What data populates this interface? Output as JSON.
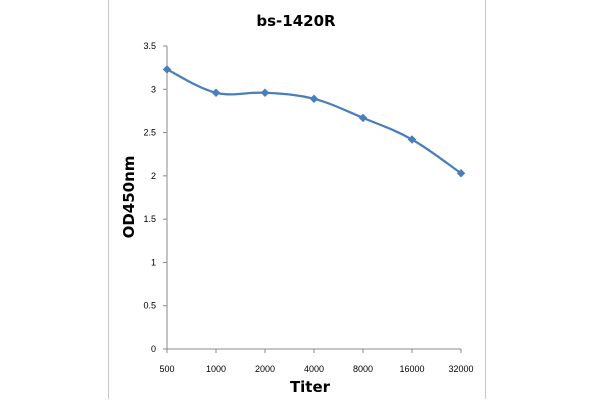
{
  "chart_data": {
    "type": "line",
    "title": "bs-1420R",
    "xlabel": "Titer",
    "ylabel": "OD450nm",
    "categories": [
      "500",
      "1000",
      "2000",
      "4000",
      "8000",
      "16000",
      "32000"
    ],
    "series": [
      {
        "values": [
          3.23,
          2.96,
          2.96,
          2.89,
          2.67,
          2.42,
          2.03
        ],
        "marker": "diamond"
      }
    ],
    "ylim": [
      0,
      3.5
    ],
    "yticks": [
      "0",
      "0.5",
      "1",
      "1.5",
      "2",
      "2.5",
      "3",
      "3.5"
    ],
    "grid": false,
    "legend": "none",
    "colors": {
      "series": "#4a7ebb",
      "axis": "#888888"
    }
  }
}
